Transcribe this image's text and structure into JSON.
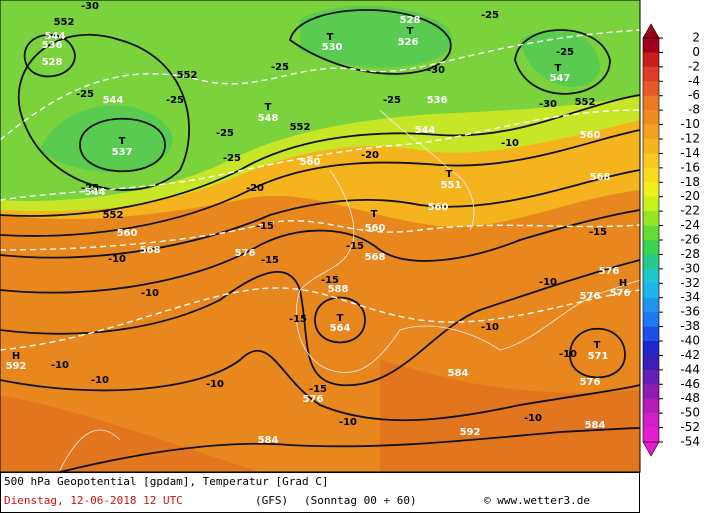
{
  "map": {
    "labels": [
      "552",
      "544",
      "536",
      "528",
      "-30",
      "-25",
      "552",
      "544",
      "-25",
      "T",
      "537",
      "-25",
      "-25",
      "-25",
      "544",
      "552",
      "560",
      "568",
      "-10",
      "-10",
      "-20",
      "-25",
      "552",
      "T",
      "548",
      "T",
      "530",
      "528",
      "T",
      "526",
      "-25",
      "-25",
      "536",
      "544",
      "-20",
      "560",
      "-30",
      "T",
      "551",
      "560",
      "-25",
      "T",
      "547",
      "-30",
      "552",
      "560",
      "-10",
      "568",
      "-15",
      "-15",
      "576",
      "T",
      "560",
      "-15",
      "568",
      "-15",
      "588",
      "-15",
      "T",
      "564",
      "-15",
      "576",
      "-10",
      "-10",
      "-10",
      "H",
      "592",
      "-10",
      "584",
      "-10",
      "576",
      "H",
      "576",
      "576",
      "-15",
      "T",
      "571",
      "-10",
      "576",
      "-10",
      "-10",
      "592",
      "584",
      "584"
    ]
  },
  "legend": {
    "labels": [
      2,
      0,
      -2,
      -4,
      -6,
      -8,
      -10,
      -12,
      -14,
      -16,
      -18,
      -20,
      -22,
      -24,
      -26,
      -28,
      -30,
      -32,
      -34,
      -36,
      -38,
      -40,
      -42,
      -44,
      -46,
      -48,
      -50,
      -52,
      -54
    ],
    "colors": [
      "#a0001e",
      "#c81e1e",
      "#dc3c28",
      "#e65a28",
      "#ee7823",
      "#f08c1e",
      "#f5a01e",
      "#f8b41e",
      "#fac81e",
      "#fadc1e",
      "#f0f01e",
      "#c8f01e",
      "#96e628",
      "#64dc32",
      "#3cd250",
      "#28c88c",
      "#1ec8c8",
      "#1eb4f0",
      "#1e96f0",
      "#1e78f0",
      "#1e50e6",
      "#1e28c8",
      "#3c1eb4",
      "#641eb4",
      "#8c1eb4",
      "#b41eb4",
      "#d21ec8",
      "#e61ed2"
    ]
  },
  "footer": {
    "line1": "500 hPa Geopotential [gpdam], Temperatur [Grad C]",
    "date": "Dienstag, 12-06-2018  12 UTC",
    "model": "(GFS)",
    "run": "(Sonntag 00 + 60)",
    "credit": "© www.wetter3.de"
  }
}
